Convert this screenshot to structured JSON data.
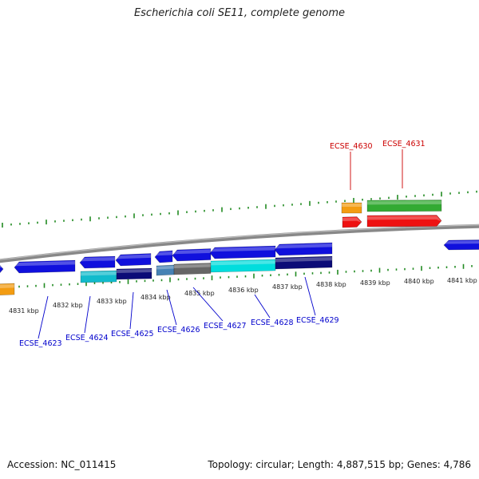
{
  "header": {
    "title": "Escherichia coli SE11, complete genome"
  },
  "footer": {
    "accession": "Accession: NC_011415",
    "summary": "Topology: circular; Length: 4,887,515 bp; Genes: 4,786"
  },
  "colors": {
    "backbone": "#888888",
    "tick": "#228B22",
    "forward_label": "#0000cc",
    "reverse_label": "#cc0000",
    "gene_blue": "#1010dd",
    "gene_orange": "#f39c12",
    "gene_red": "#ee1111",
    "gene_green": "#33aa33",
    "gene_cyan": "#00dddd",
    "gene_navy": "#0b0b77",
    "gene_teal": "#11bbcc",
    "gene_steel": "#4682b4",
    "gene_gray": "#666666"
  },
  "scale": {
    "labels": [
      "4831 kbp",
      "4832 kbp",
      "4833 kbp",
      "4834 kbp",
      "4835 kbp",
      "4836 kbp",
      "4837 kbp",
      "4838 kbp",
      "4839 kbp",
      "4840 kbp",
      "4841 kbp"
    ]
  },
  "gene_labels": {
    "forward": [
      "ECSE_4623",
      "ECSE_4624",
      "ECSE_4625",
      "ECSE_4626",
      "ECSE_4627",
      "ECSE_4628",
      "ECSE_4629"
    ],
    "reverse": [
      "ECSE_4630",
      "ECSE_4631"
    ]
  }
}
